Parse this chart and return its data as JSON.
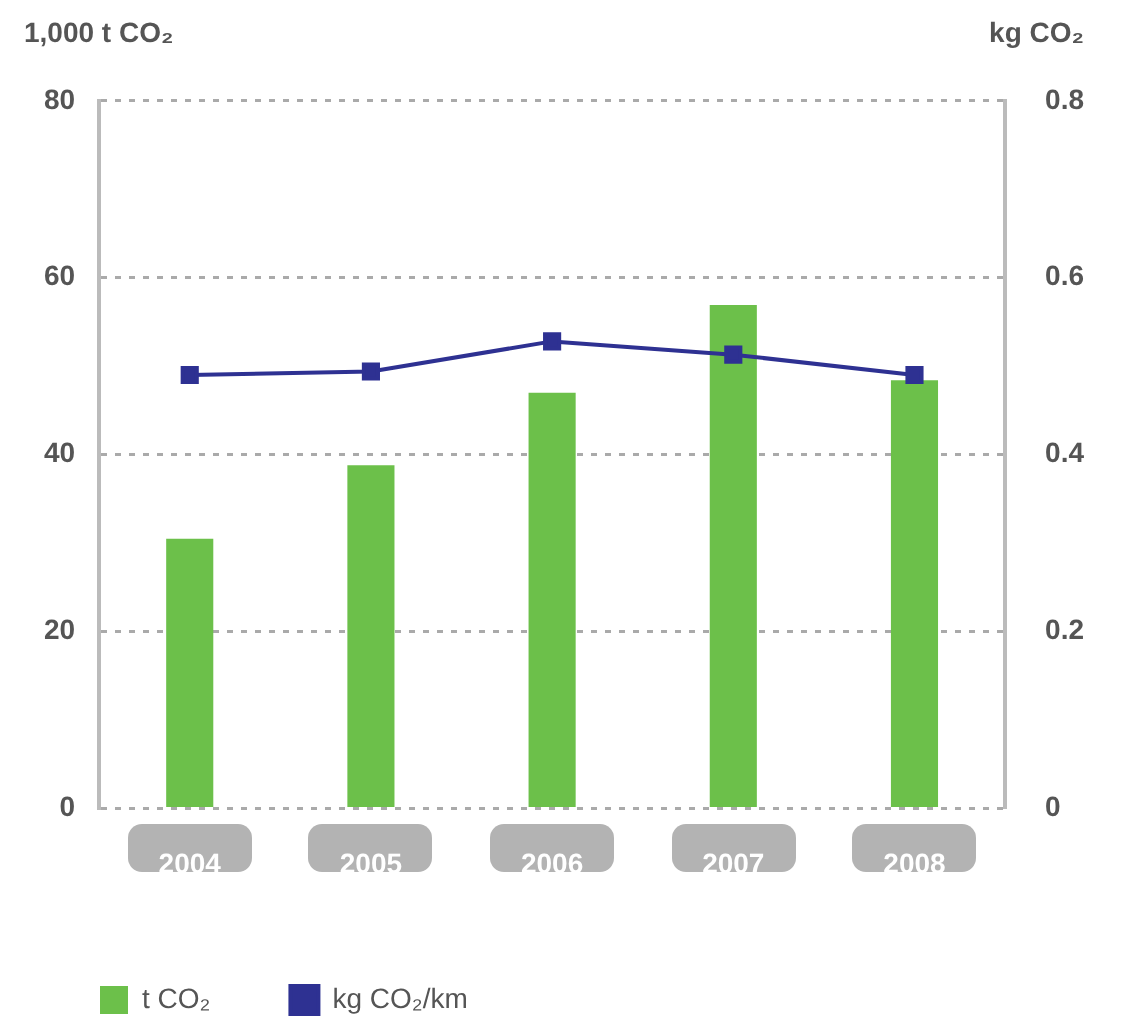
{
  "chart_data": {
    "type": "bar",
    "xlabel": null,
    "ylabel": "1,000 t CO₂",
    "y2label": "kg CO₂",
    "categories": [
      "2004",
      "2005",
      "2006",
      "2007",
      "2008"
    ],
    "series": [
      {
        "name": "t CO₂",
        "color": "#6cc04a",
        "values": [
          30.5,
          38.8,
          47,
          56.9,
          48.4
        ]
      },
      {
        "name": "kg CO₂/km",
        "type": "line",
        "axis": "y2",
        "color": "#2e3192",
        "values": [
          0.49,
          0.494,
          0.528,
          0.513,
          0.49
        ]
      }
    ],
    "ylim": [
      0,
      80
    ],
    "yticks": [
      0,
      20,
      40,
      60,
      80
    ],
    "y2lim": [
      0,
      0.8
    ],
    "y2ticks": [
      0,
      0.2,
      0.4,
      0.6,
      0.8
    ],
    "grid": "y",
    "legend": "bottom left",
    "marker": "square",
    "line_style": "solid"
  }
}
